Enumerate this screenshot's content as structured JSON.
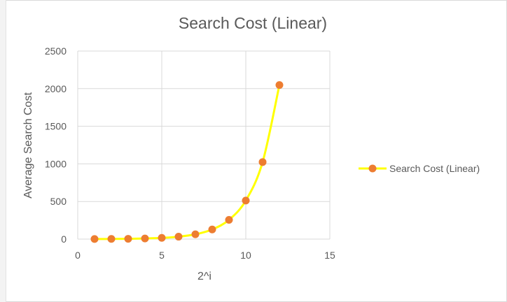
{
  "chart_data": {
    "type": "scatter",
    "title": "Search Cost (Linear)",
    "xlabel": "2^i",
    "ylabel": "Average Search Cost",
    "xlim": [
      0,
      15
    ],
    "ylim": [
      0,
      2500
    ],
    "x_ticks": [
      0,
      5,
      10,
      15
    ],
    "y_ticks": [
      0,
      500,
      1000,
      1500,
      2000,
      2500
    ],
    "x_tick_labels": [
      "0",
      "5",
      "10",
      "15"
    ],
    "y_tick_labels": [
      "0",
      "500",
      "1000",
      "1500",
      "2000",
      "2500"
    ],
    "grid": true,
    "smooth_line": true,
    "legend_position": "right",
    "series": [
      {
        "name": "Search Cost (Linear)",
        "line_color": "#ffff00",
        "marker_color": "#ed7d31",
        "x": [
          1,
          2,
          3,
          4,
          5,
          6,
          7,
          8,
          9,
          10,
          11,
          12
        ],
        "y": [
          1,
          2,
          4,
          8,
          16,
          32,
          64,
          128,
          256,
          512,
          1024,
          2048
        ]
      }
    ]
  }
}
